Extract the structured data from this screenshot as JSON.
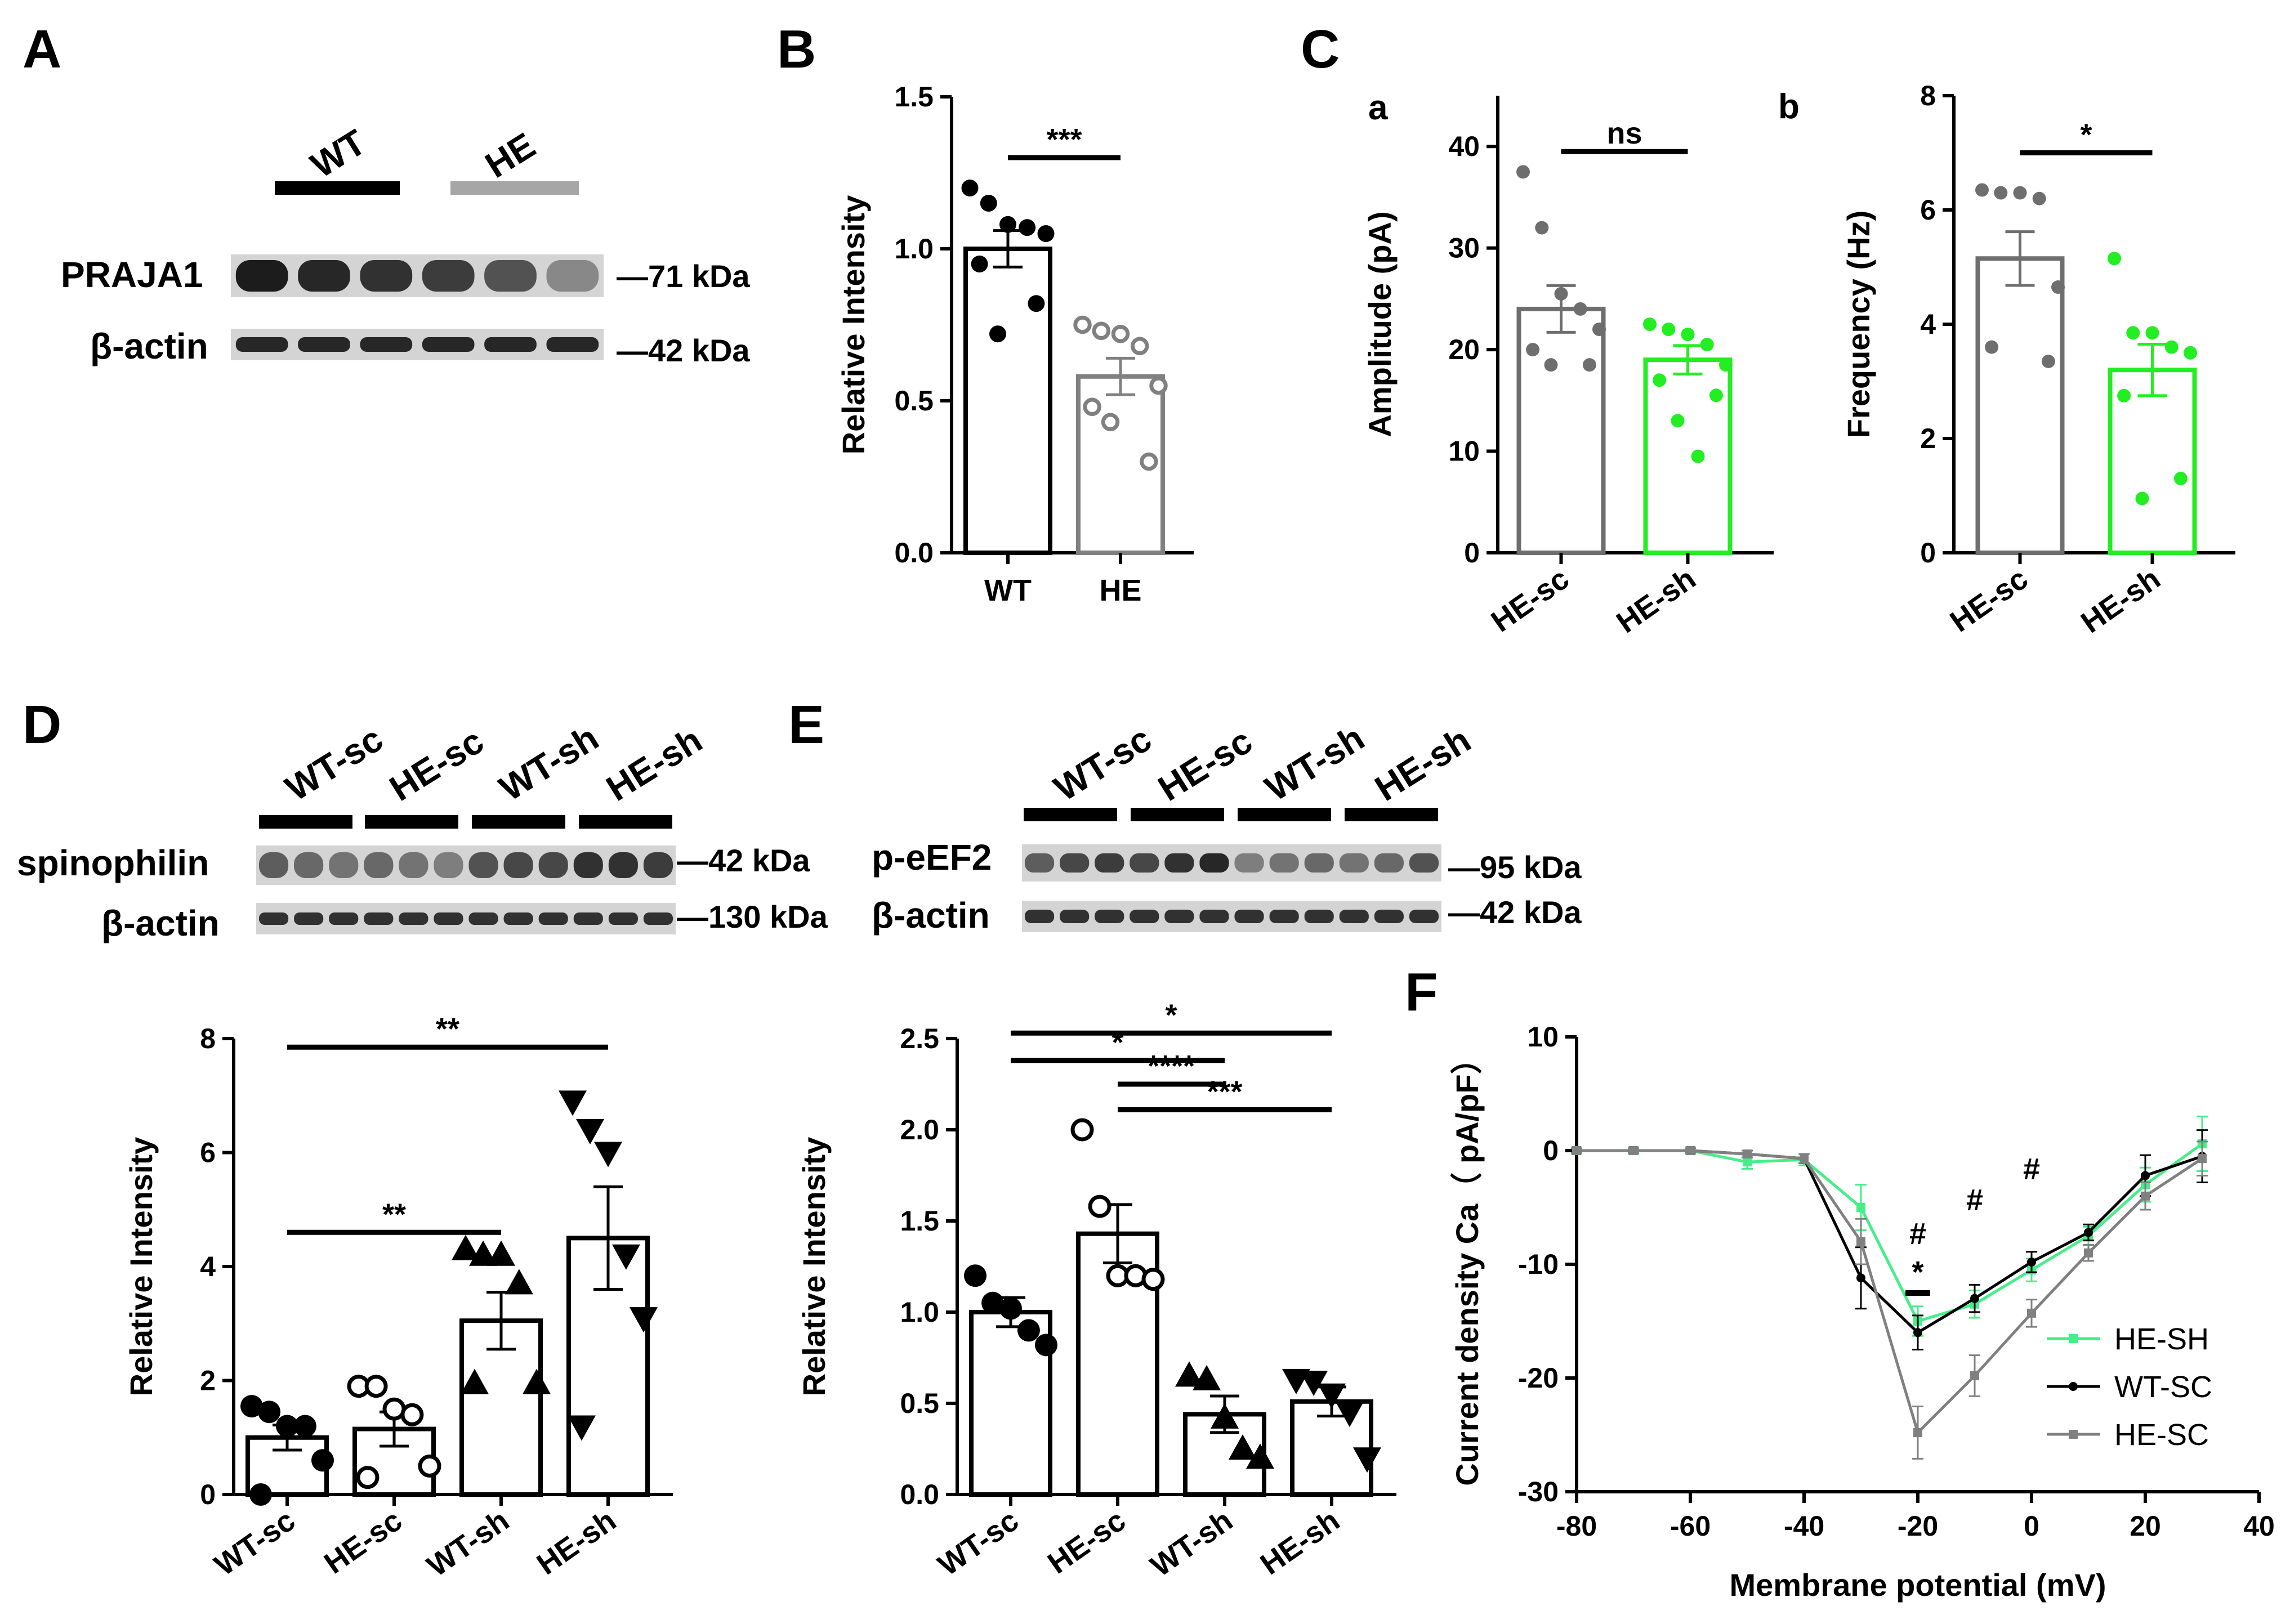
{
  "panels": {
    "A": {
      "letter": "A",
      "groups": [
        {
          "label": "WT",
          "color": "#000000"
        },
        {
          "label": "HE",
          "color": "#a6a6a6"
        }
      ],
      "rows": [
        {
          "protein": "PRAJA1",
          "mw": "—71 kDa",
          "intensity": [
            0.95,
            0.9,
            0.85,
            0.8,
            0.7,
            0.45
          ]
        },
        {
          "protein": "β-actin",
          "mw": "—42 kDa",
          "intensity": [
            0.9,
            0.9,
            0.9,
            0.9,
            0.9,
            0.9
          ]
        }
      ]
    },
    "D": {
      "letter": "D",
      "groups": [
        "WT-sc",
        "HE-sc",
        "WT-sh",
        "HE-sh"
      ],
      "rows": [
        {
          "protein": "spinophilin",
          "mw": "—42 kDa",
          "intensity": [
            0.65,
            0.6,
            0.55,
            0.6,
            0.55,
            0.5,
            0.7,
            0.75,
            0.75,
            0.85,
            0.85,
            0.8
          ]
        },
        {
          "protein": "β-actin",
          "mw": "—130 kDa",
          "intensity": [
            0.85,
            0.85,
            0.85,
            0.85,
            0.85,
            0.85,
            0.85,
            0.85,
            0.85,
            0.85,
            0.85,
            0.85
          ]
        }
      ]
    },
    "E": {
      "letter": "E",
      "groups": [
        "WT-sc",
        "HE-sc",
        "WT-sh",
        "HE-sh"
      ],
      "rows": [
        {
          "protein": "p-eEF2",
          "mw": "—95 kDa",
          "intensity": [
            0.65,
            0.75,
            0.8,
            0.75,
            0.85,
            0.9,
            0.5,
            0.55,
            0.6,
            0.55,
            0.6,
            0.7
          ]
        },
        {
          "protein": "β-actin",
          "mw": "—42 kDa",
          "intensity": [
            0.85,
            0.85,
            0.85,
            0.85,
            0.85,
            0.85,
            0.85,
            0.85,
            0.85,
            0.85,
            0.85,
            0.85
          ]
        }
      ]
    },
    "B": {
      "letter": "B"
    },
    "C": {
      "letter": "C",
      "sub_a": "a",
      "sub_b": "b"
    },
    "F": {
      "letter": "F"
    }
  },
  "chart_data": [
    {
      "id": "B",
      "type": "bar",
      "ylabel": "Relative Intensity",
      "ylim": [
        0,
        1.5
      ],
      "yticks": [
        "0.0",
        "0.5",
        "1.0",
        "1.5"
      ],
      "categories": [
        "WT",
        "HE"
      ],
      "values": [
        1.0,
        0.58
      ],
      "errors": [
        0.06,
        0.06
      ],
      "colors": [
        "#000000",
        "#808080"
      ],
      "points": [
        [
          1.2,
          1.15,
          1.08,
          1.07,
          1.05,
          0.95,
          0.82,
          0.72
        ],
        [
          0.75,
          0.73,
          0.72,
          0.68,
          0.55,
          0.48,
          0.3,
          0.43
        ]
      ],
      "markers": [
        "filled-circle",
        "open-circle"
      ],
      "significance": [
        {
          "from": 0,
          "to": 1,
          "level": 1.3,
          "text": "***"
        }
      ]
    },
    {
      "id": "C-a",
      "type": "bar",
      "ylabel": "Amplitude (pA)",
      "ylim": [
        0,
        45
      ],
      "yticks": [
        "0",
        "10",
        "20",
        "30",
        "40"
      ],
      "categories": [
        "HE-sc",
        "HE-sh"
      ],
      "values": [
        24.0,
        19.0
      ],
      "errors": [
        2.3,
        1.4
      ],
      "colors": [
        "#6e6e6e",
        "#22ee22"
      ],
      "points": [
        [
          37.5,
          32.0,
          25.5,
          24.0,
          22.0,
          20.0,
          18.5,
          18.5
        ],
        [
          22.5,
          22.0,
          21.5,
          20.5,
          18.5,
          17.0,
          15.5,
          13.0,
          9.5
        ]
      ],
      "markers": [
        "filled-circle",
        "filled-circle"
      ],
      "significance": [
        {
          "from": 0,
          "to": 1,
          "level": 39.5,
          "text": "ns"
        }
      ]
    },
    {
      "id": "C-b",
      "type": "bar",
      "ylabel": "Frequency (Hz)",
      "ylim": [
        0,
        8
      ],
      "yticks": [
        "0",
        "2",
        "4",
        "6",
        "8"
      ],
      "categories": [
        "HE-sc",
        "HE-sh"
      ],
      "values": [
        5.15,
        3.2
      ],
      "errors": [
        0.47,
        0.45
      ],
      "colors": [
        "#6e6e6e",
        "#22ee22"
      ],
      "points": [
        [
          6.35,
          6.3,
          6.3,
          6.2,
          4.65,
          3.6,
          3.35
        ],
        [
          5.15,
          3.85,
          3.85,
          3.6,
          3.5,
          2.75,
          1.3,
          0.95
        ]
      ],
      "markers": [
        "filled-circle",
        "filled-circle"
      ],
      "significance": [
        {
          "from": 0,
          "to": 1,
          "level": 7.0,
          "text": "*"
        }
      ]
    },
    {
      "id": "D",
      "type": "bar",
      "ylabel": "Relative Intensity",
      "ylim": [
        0,
        8
      ],
      "yticks": [
        "0",
        "2",
        "4",
        "6",
        "8"
      ],
      "categories": [
        "WT-sc",
        "HE-sc",
        "WT-sh",
        "HE-sh"
      ],
      "values": [
        1.0,
        1.15,
        3.05,
        4.5
      ],
      "errors": [
        0.22,
        0.3,
        0.5,
        0.9
      ],
      "colors": [
        "#000000",
        "#000000",
        "#000000",
        "#000000"
      ],
      "points": [
        [
          1.55,
          1.45,
          1.2,
          1.2,
          0.6,
          0.0
        ],
        [
          1.9,
          1.9,
          1.5,
          1.4,
          0.5,
          0.3
        ],
        [
          4.3,
          4.2,
          4.2,
          3.7,
          1.95,
          1.95
        ],
        [
          6.9,
          6.4,
          6.0,
          4.2,
          3.1,
          1.2
        ]
      ],
      "markers": [
        "filled-circle",
        "open-circle",
        "filled-triangle",
        "filled-triangle-down"
      ],
      "significance": [
        {
          "from": 0,
          "to": 3,
          "level": 7.85,
          "text": "**"
        },
        {
          "from": 0,
          "to": 2,
          "level": 4.6,
          "text": "**"
        }
      ]
    },
    {
      "id": "E",
      "type": "bar",
      "ylabel": "Relative Intensity",
      "ylim": [
        0,
        2.5
      ],
      "yticks": [
        "0.0",
        "0.5",
        "1.0",
        "1.5",
        "2.0",
        "2.5"
      ],
      "categories": [
        "WT-sc",
        "HE-sc",
        "WT-sh",
        "HE-sh"
      ],
      "values": [
        1.0,
        1.43,
        0.44,
        0.51
      ],
      "errors": [
        0.08,
        0.16,
        0.1,
        0.08
      ],
      "colors": [
        "#000000",
        "#000000",
        "#000000",
        "#000000"
      ],
      "points": [
        [
          1.2,
          1.05,
          1.02,
          0.9,
          0.82
        ],
        [
          2.0,
          1.58,
          1.2,
          1.2,
          1.18
        ],
        [
          0.65,
          0.63,
          0.42,
          0.25,
          0.2
        ],
        [
          0.63,
          0.62,
          0.55,
          0.45,
          0.2
        ]
      ],
      "markers": [
        "filled-circle",
        "open-circle",
        "filled-triangle",
        "filled-triangle-down"
      ],
      "significance": [
        {
          "from": 0,
          "to": 3,
          "level": 2.53,
          "text": "*"
        },
        {
          "from": 0,
          "to": 2,
          "level": 2.38,
          "text": "*"
        },
        {
          "from": 1,
          "to": 2,
          "level": 2.25,
          "text": "****"
        },
        {
          "from": 1,
          "to": 3,
          "level": 2.11,
          "text": "***"
        }
      ]
    },
    {
      "id": "F",
      "type": "line",
      "xlabel": "Membrane potential (mV)",
      "ylabel": "Current density Ca（ pA/pF）",
      "xlim": [
        -80,
        40
      ],
      "ylim": [
        -30,
        10
      ],
      "xticks": [
        "-80",
        "-60",
        "-40",
        "-20",
        "0",
        "20",
        "40"
      ],
      "yticks": [
        "-30",
        "-20",
        "-10",
        "0",
        "10"
      ],
      "x": [
        -80,
        -70,
        -60,
        -50,
        -40,
        -30,
        -20,
        -10,
        0,
        10,
        20,
        30
      ],
      "series": [
        {
          "name": "HE-SH",
          "color": "#44ee88",
          "marker": "square",
          "values": [
            0,
            0,
            0,
            -1.0,
            -0.8,
            -5.0,
            -15.0,
            -13.5,
            -10.5,
            -7.5,
            -3.0,
            0.6
          ],
          "errors": [
            0.3,
            0.3,
            0.3,
            0.6,
            0.5,
            2.0,
            1.3,
            1.2,
            1.0,
            0.8,
            1.5,
            2.4
          ]
        },
        {
          "name": "WT-SC",
          "color": "#000000",
          "marker": "circle",
          "values": [
            0,
            0,
            0,
            -0.3,
            -0.7,
            -11.2,
            -16.0,
            -13.0,
            -9.8,
            -7.2,
            -2.2,
            -0.5
          ],
          "errors": [
            0.2,
            0.2,
            0.2,
            0.3,
            0.4,
            2.7,
            1.5,
            1.2,
            0.9,
            0.7,
            1.8,
            2.3
          ]
        },
        {
          "name": "HE-SC",
          "color": "#808080",
          "marker": "square",
          "values": [
            0,
            0,
            0,
            -0.3,
            -0.7,
            -8.0,
            -24.8,
            -19.8,
            -14.3,
            -9.0,
            -4.0,
            -0.7
          ],
          "errors": [
            0.2,
            0.2,
            0.2,
            0.3,
            0.4,
            2.0,
            2.3,
            1.8,
            1.2,
            0.7,
            1.2,
            1.5
          ]
        }
      ],
      "legend": "bottom-right",
      "annotations": [
        {
          "x": -20,
          "text": "#"
        },
        {
          "x": -20,
          "text": "*"
        },
        {
          "x": -10,
          "text": "#"
        },
        {
          "x": 0,
          "text": "#"
        }
      ]
    }
  ]
}
